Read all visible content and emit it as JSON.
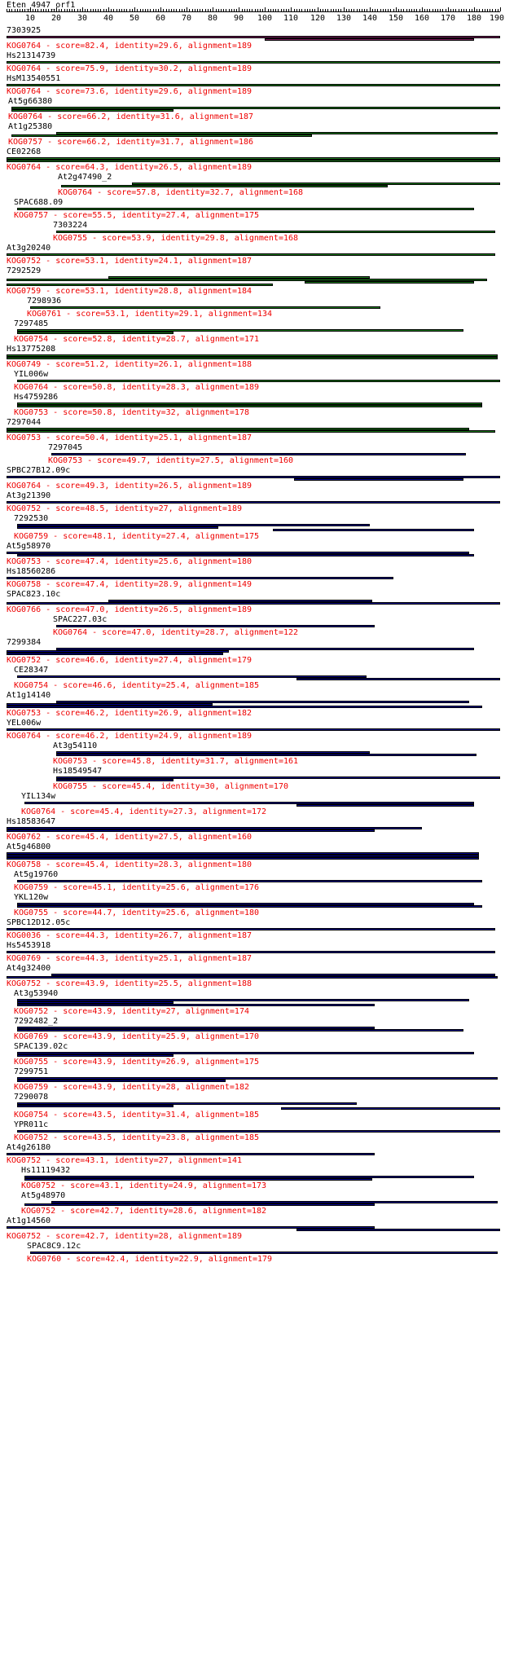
{
  "query": {
    "name": "Eten_4947_orf1",
    "length": 190
  },
  "axis": {
    "ticks": [
      10,
      20,
      30,
      40,
      50,
      60,
      70,
      80,
      90,
      100,
      110,
      120,
      130,
      140,
      150,
      160,
      170,
      180,
      190
    ]
  },
  "colors": {
    "label": "#000000",
    "info": "#ee0000",
    "purple": "#7a1f5c",
    "green": "#1d7a1d",
    "blue": "#00008b"
  },
  "hits": [
    {
      "label": "7303925",
      "info": "KOG0764 - score=82.4, identity=29.6, alignment=189",
      "color": "purple",
      "start": 1,
      "segments": [
        [
          1,
          190
        ],
        [
          100,
          180
        ]
      ]
    },
    {
      "label": "Hs21314739",
      "info": "KOG0764 - score=75.9, identity=30.2, alignment=189",
      "color": "green",
      "start": 1,
      "segments": [
        [
          1,
          190
        ]
      ]
    },
    {
      "label": "HsM13540551",
      "info": "KOG0764 - score=73.6, identity=29.6, alignment=189",
      "color": "green",
      "start": 1,
      "segments": [
        [
          1,
          190
        ]
      ]
    },
    {
      "label": "At5g66380",
      "info": "KOG0764 - score=66.2, identity=31.6, alignment=187",
      "color": "green",
      "start": 3,
      "segments": [
        [
          3,
          190
        ],
        [
          3,
          65
        ]
      ]
    },
    {
      "label": "At1g25380",
      "info": "KOG0757 - score=66.2, identity=31.7, alignment=186",
      "color": "green",
      "start": 3,
      "segments": [
        [
          20,
          189
        ],
        [
          3,
          118
        ]
      ]
    },
    {
      "label": "CE02268",
      "info": "KOG0764 - score=64.3, identity=26.5, alignment=189",
      "color": "green",
      "start": 1,
      "segments": [
        [
          1,
          190
        ],
        [
          1,
          190
        ]
      ]
    },
    {
      "label": "At2g47490_2",
      "info": "KOG0764 - score=57.8, identity=32.7, alignment=168",
      "color": "green",
      "start": 22,
      "segments": [
        [
          49,
          190
        ],
        [
          22,
          147
        ]
      ]
    },
    {
      "label": "SPAC688.09",
      "info": "KOG0757 - score=55.5, identity=27.4, alignment=175",
      "color": "green",
      "start": 5,
      "segments": [
        [
          5,
          180
        ]
      ]
    },
    {
      "label": "7303224",
      "info": "KOG0755 - score=53.9, identity=29.8, alignment=168",
      "color": "green",
      "start": 20,
      "segments": [
        [
          20,
          188
        ]
      ]
    },
    {
      "label": "At3g20240",
      "info": "KOG0752 - score=53.1, identity=24.1, alignment=187",
      "color": "green",
      "start": 1,
      "segments": [
        [
          1,
          188
        ]
      ]
    },
    {
      "label": "7292529",
      "info": "KOG0759 - score=53.1, identity=28.8, alignment=184",
      "color": "green",
      "start": 1,
      "segments": [
        [
          40,
          140
        ],
        [
          1,
          185
        ],
        [
          115,
          180
        ],
        [
          1,
          103
        ]
      ]
    },
    {
      "label": "7298936",
      "info": "KOG0761 - score=53.1, identity=29.1, alignment=134",
      "color": "green",
      "start": 10,
      "segments": [
        [
          10,
          144
        ]
      ]
    },
    {
      "label": "7297485",
      "info": "KOG0754 - score=52.8, identity=28.7, alignment=171",
      "color": "green",
      "start": 5,
      "segments": [
        [
          5,
          176
        ],
        [
          5,
          65
        ]
      ]
    },
    {
      "label": "Hs13775208",
      "info": "KOG0749 - score=51.2, identity=26.1, alignment=188",
      "color": "green",
      "start": 1,
      "segments": [
        [
          1,
          189
        ],
        [
          1,
          189
        ]
      ]
    },
    {
      "label": "YIL006w",
      "info": "KOG0764 - score=50.8, identity=28.3, alignment=189",
      "color": "green",
      "start": 5,
      "segments": [
        [
          5,
          190
        ]
      ]
    },
    {
      "label": "Hs4759286",
      "info": "KOG0753 - score=50.8, identity=32, alignment=178",
      "color": "green",
      "start": 5,
      "segments": [
        [
          5,
          183
        ],
        [
          5,
          183
        ]
      ]
    },
    {
      "label": "7297044",
      "info": "KOG0753 - score=50.4, identity=25.1, alignment=187",
      "color": "green",
      "start": 1,
      "segments": [
        [
          1,
          178
        ],
        [
          1,
          188
        ]
      ]
    },
    {
      "label": "7297045",
      "info": "KOG0753 - score=49.7, identity=27.5, alignment=160",
      "color": "blue",
      "start": 18,
      "segments": [
        [
          18,
          177
        ]
      ]
    },
    {
      "label": "SPBC27B12.09c",
      "info": "KOG0764 - score=49.3, identity=26.5, alignment=189",
      "color": "blue",
      "start": 1,
      "segments": [
        [
          1,
          190
        ],
        [
          111,
          176
        ]
      ]
    },
    {
      "label": "At3g21390",
      "info": "KOG0752 - score=48.5, identity=27, alignment=189",
      "color": "blue",
      "start": 1,
      "segments": [
        [
          1,
          190
        ]
      ]
    },
    {
      "label": "7292530",
      "info": "KOG0759 - score=48.1, identity=27.4, alignment=175",
      "color": "blue",
      "start": 5,
      "segments": [
        [
          5,
          140
        ],
        [
          5,
          82
        ],
        [
          103,
          180
        ]
      ]
    },
    {
      "label": "At5g58970",
      "info": "KOG0753 - score=47.4, identity=25.6, alignment=180",
      "color": "blue",
      "start": 1,
      "segments": [
        [
          1,
          178
        ],
        [
          5,
          180
        ]
      ]
    },
    {
      "label": "Hs18560286",
      "info": "KOG0758 - score=47.4, identity=28.9, alignment=149",
      "color": "blue",
      "start": 1,
      "segments": [
        [
          1,
          149
        ]
      ]
    },
    {
      "label": "SPAC823.10c",
      "info": "KOG0766 - score=47.0, identity=26.5, alignment=189",
      "color": "blue",
      "start": 1,
      "segments": [
        [
          40,
          141
        ],
        [
          1,
          190
        ]
      ]
    },
    {
      "label": "SPAC227.03c",
      "info": "KOG0764 - score=47.0, identity=28.7, alignment=122",
      "color": "blue",
      "start": 20,
      "segments": [
        [
          20,
          142
        ]
      ]
    },
    {
      "label": "7299384",
      "info": "KOG0752 - score=46.6, identity=27.4, alignment=179",
      "color": "blue",
      "start": 1,
      "segments": [
        [
          20,
          180
        ],
        [
          1,
          86
        ],
        [
          1,
          84
        ]
      ]
    },
    {
      "label": "CE28347",
      "info": "KOG0754 - score=46.6, identity=25.4, alignment=185",
      "color": "blue",
      "start": 5,
      "segments": [
        [
          5,
          139
        ],
        [
          112,
          190
        ]
      ]
    },
    {
      "label": "At1g14140",
      "info": "KOG0753 - score=46.2, identity=26.9, alignment=182",
      "color": "blue",
      "start": 1,
      "segments": [
        [
          20,
          178
        ],
        [
          1,
          80
        ],
        [
          1,
          183
        ]
      ]
    },
    {
      "label": "YEL006w",
      "info": "KOG0764 - score=46.2, identity=24.9, alignment=189",
      "color": "blue",
      "start": 1,
      "segments": [
        [
          1,
          190
        ]
      ]
    },
    {
      "label": "At3g54110",
      "info": "KOG0753 - score=45.8, identity=31.7, alignment=161",
      "color": "blue",
      "start": 20,
      "segments": [
        [
          20,
          140
        ],
        [
          20,
          181
        ]
      ]
    },
    {
      "label": "Hs18549547",
      "info": "KOG0755 - score=45.4, identity=30, alignment=170",
      "color": "blue",
      "start": 20,
      "segments": [
        [
          20,
          190
        ],
        [
          20,
          65
        ]
      ]
    },
    {
      "label": "YIL134w",
      "info": "KOG0764 - score=45.4, identity=27.3, alignment=172",
      "color": "blue",
      "start": 8,
      "segments": [
        [
          8,
          180
        ],
        [
          112,
          180
        ]
      ]
    },
    {
      "label": "Hs18583647",
      "info": "KOG0762 - score=45.4, identity=27.5, alignment=160",
      "color": "blue",
      "start": 1,
      "segments": [
        [
          1,
          160
        ],
        [
          1,
          142
        ]
      ]
    },
    {
      "label": "At5g46800",
      "info": "KOG0758 - score=45.4, identity=28.3, alignment=180",
      "color": "blue",
      "start": 1,
      "segments": [
        [
          1,
          182
        ],
        [
          1,
          182
        ],
        [
          1,
          182
        ]
      ],
      "dotted": [
        65,
        112
      ]
    },
    {
      "label": "At5g19760",
      "info": "KOG0759 - score=45.1, identity=25.6, alignment=176",
      "color": "blue",
      "start": 5,
      "segments": [
        [
          5,
          183
        ]
      ]
    },
    {
      "label": "YKL120w",
      "info": "KOG0755 - score=44.7, identity=25.6, alignment=180",
      "color": "blue",
      "start": 5,
      "segments": [
        [
          5,
          180
        ],
        [
          5,
          183
        ]
      ]
    },
    {
      "label": "SPBC12D12.05c",
      "info": "KOG0036 - score=44.3, identity=26.7, alignment=187",
      "color": "blue",
      "start": 1,
      "segments": [
        [
          1,
          188
        ]
      ]
    },
    {
      "label": "Hs5453918",
      "info": "KOG0769 - score=44.3, identity=25.1, alignment=187",
      "color": "blue",
      "start": 1,
      "segments": [
        [
          1,
          188
        ]
      ]
    },
    {
      "label": "At4g32400",
      "info": "KOG0752 - score=43.9, identity=25.5, alignment=188",
      "color": "blue",
      "start": 1,
      "segments": [
        [
          18,
          188
        ],
        [
          1,
          189
        ]
      ]
    },
    {
      "label": "At3g53940",
      "info": "KOG0752 - score=43.9, identity=27, alignment=174",
      "color": "blue",
      "start": 5,
      "segments": [
        [
          5,
          178
        ],
        [
          5,
          65
        ],
        [
          5,
          142
        ]
      ]
    },
    {
      "label": "7292482_2",
      "info": "KOG0769 - score=43.9, identity=25.9, alignment=170",
      "color": "blue",
      "start": 5,
      "segments": [
        [
          5,
          142
        ],
        [
          5,
          176
        ]
      ]
    },
    {
      "label": "SPAC139.02c",
      "info": "KOG0755 - score=43.9, identity=26.9, alignment=175",
      "color": "blue",
      "start": 5,
      "segments": [
        [
          5,
          180
        ],
        [
          5,
          65
        ]
      ]
    },
    {
      "label": "7299751",
      "info": "KOG0759 - score=43.9, identity=28, alignment=182",
      "color": "blue",
      "start": 5,
      "segments": [
        [
          5,
          189
        ],
        [
          5,
          85
        ]
      ]
    },
    {
      "label": "7290078",
      "info": "KOG0754 - score=43.5, identity=31.4, alignment=185",
      "color": "blue",
      "start": 5,
      "segments": [
        [
          5,
          135
        ],
        [
          5,
          65
        ],
        [
          106,
          190
        ]
      ],
      "dotted": [
        65,
        106
      ]
    },
    {
      "label": "YPR011c",
      "info": "KOG0752 - score=43.5, identity=23.8, alignment=185",
      "color": "blue",
      "start": 5,
      "segments": [
        [
          5,
          190
        ]
      ]
    },
    {
      "label": "At4g26180",
      "info": "KOG0752 - score=43.1, identity=27, alignment=141",
      "color": "blue",
      "start": 1,
      "segments": [
        [
          1,
          142
        ]
      ]
    },
    {
      "label": "Hs11119432",
      "info": "KOG0752 - score=43.1, identity=24.9, alignment=173",
      "color": "blue",
      "start": 8,
      "segments": [
        [
          8,
          180
        ],
        [
          8,
          141
        ]
      ]
    },
    {
      "label": "At5g48970",
      "info": "KOG0752 - score=42.7, identity=28.6, alignment=182",
      "color": "blue",
      "start": 8,
      "segments": [
        [
          18,
          189
        ],
        [
          8,
          142
        ]
      ]
    },
    {
      "label": "At1g14560",
      "info": "KOG0752 - score=42.7, identity=28, alignment=189",
      "color": "blue",
      "start": 1,
      "segments": [
        [
          1,
          142
        ],
        [
          112,
          190
        ]
      ]
    },
    {
      "label": "SPAC8C9.12c",
      "info": "KOG0760 - score=42.4, identity=22.9, alignment=179",
      "color": "blue",
      "start": 10,
      "segments": [
        [
          10,
          189
        ]
      ]
    }
  ]
}
